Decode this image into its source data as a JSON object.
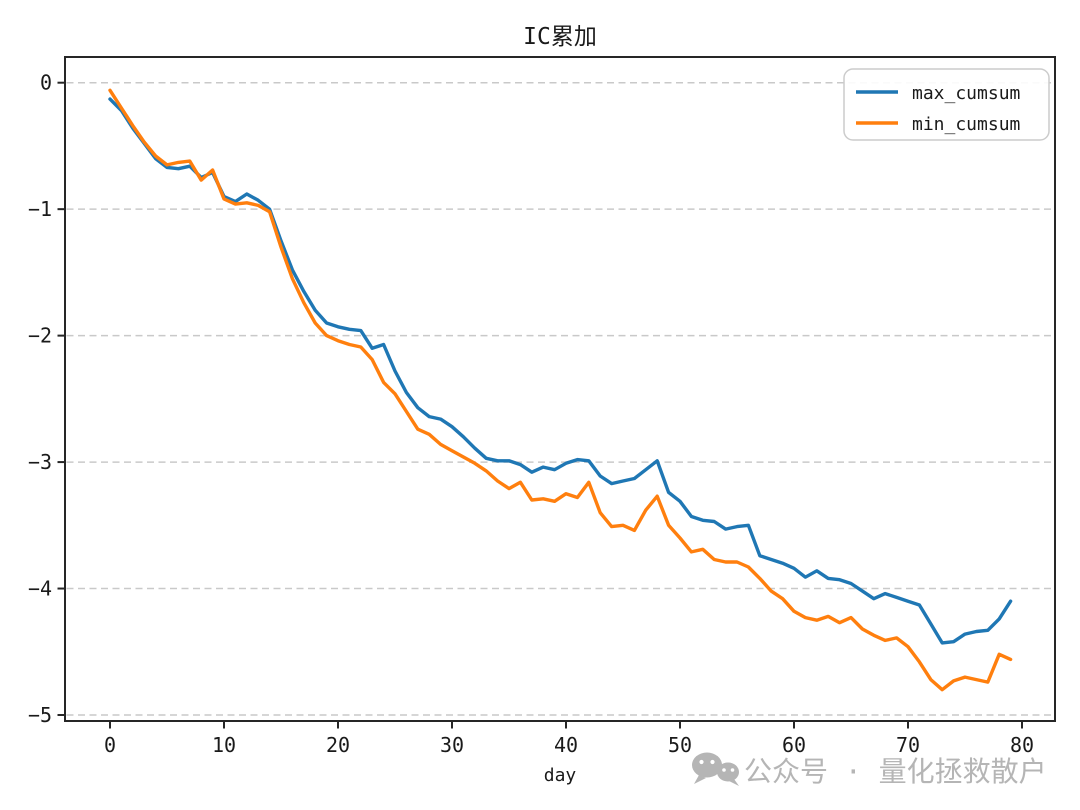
{
  "figure": {
    "title": "IC累加",
    "xlabel": "day",
    "watermark": {
      "text": "公众号 · 量化拯救散户",
      "icon": "wechat-icon",
      "color": "#b5b5b5"
    }
  },
  "legend": {
    "position": "upper right",
    "entries": [
      {
        "label": "max_cumsum",
        "color": "#1f77b4"
      },
      {
        "label": "min_cumsum",
        "color": "#ff7f0e"
      }
    ]
  },
  "chart_data": {
    "type": "line",
    "title": "IC累加",
    "xlabel": "day",
    "ylabel": "",
    "grid": "horizontal-dashed",
    "legend_position": "upper right",
    "xlim": [
      -3.95,
      82.95
    ],
    "ylim": [
      -5.05,
      0.18
    ],
    "x_ticks": [
      0,
      10,
      20,
      30,
      40,
      50,
      60,
      70,
      80
    ],
    "x_tick_labels": [
      "0",
      "10",
      "20",
      "30",
      "40",
      "50",
      "60",
      "70",
      "80"
    ],
    "y_ticks": [
      0,
      -1,
      -2,
      -3,
      -4,
      -5
    ],
    "y_tick_labels": [
      "0",
      "−1",
      "−2",
      "−3",
      "−4",
      "−5"
    ],
    "x": [
      0,
      1,
      2,
      3,
      4,
      5,
      6,
      7,
      8,
      9,
      10,
      11,
      12,
      13,
      14,
      15,
      16,
      17,
      18,
      19,
      20,
      21,
      22,
      23,
      24,
      25,
      26,
      27,
      28,
      29,
      30,
      31,
      32,
      33,
      34,
      35,
      36,
      37,
      38,
      39,
      40,
      41,
      42,
      43,
      44,
      45,
      46,
      47,
      48,
      49,
      50,
      51,
      52,
      53,
      54,
      55,
      56,
      57,
      58,
      59,
      60,
      61,
      62,
      63,
      64,
      65,
      66,
      67,
      68,
      69,
      70,
      71,
      72,
      73,
      74,
      75,
      76,
      77,
      78,
      79
    ],
    "series": [
      {
        "name": "max_cumsum",
        "color": "#1f77b4",
        "values": [
          -0.13,
          -0.22,
          -0.36,
          -0.48,
          -0.6,
          -0.67,
          -0.68,
          -0.66,
          -0.75,
          -0.71,
          -0.9,
          -0.94,
          -0.88,
          -0.93,
          -1.0,
          -1.25,
          -1.48,
          -1.65,
          -1.8,
          -1.9,
          -1.93,
          -1.95,
          -1.96,
          -2.1,
          -2.07,
          -2.28,
          -2.45,
          -2.57,
          -2.64,
          -2.66,
          -2.72,
          -2.8,
          -2.89,
          -2.97,
          -2.99,
          -2.99,
          -3.02,
          -3.08,
          -3.04,
          -3.06,
          -3.01,
          -2.98,
          -2.99,
          -3.11,
          -3.17,
          -3.15,
          -3.13,
          -3.06,
          -2.99,
          -3.24,
          -3.31,
          -3.43,
          -3.46,
          -3.47,
          -3.53,
          -3.51,
          -3.5,
          -3.74,
          -3.77,
          -3.8,
          -3.84,
          -3.91,
          -3.86,
          -3.92,
          -3.93,
          -3.96,
          -4.02,
          -4.08,
          -4.04,
          -4.07,
          -4.1,
          -4.13,
          -4.28,
          -4.43,
          -4.42,
          -4.36,
          -4.34,
          -4.33,
          -4.24,
          -4.1
        ]
      },
      {
        "name": "min_cumsum",
        "color": "#ff7f0e",
        "values": [
          -0.06,
          -0.2,
          -0.34,
          -0.47,
          -0.58,
          -0.65,
          -0.63,
          -0.62,
          -0.77,
          -0.69,
          -0.92,
          -0.96,
          -0.95,
          -0.97,
          -1.02,
          -1.3,
          -1.55,
          -1.74,
          -1.9,
          -2.0,
          -2.04,
          -2.07,
          -2.09,
          -2.19,
          -2.37,
          -2.46,
          -2.6,
          -2.74,
          -2.78,
          -2.86,
          -2.91,
          -2.96,
          -3.01,
          -3.07,
          -3.15,
          -3.21,
          -3.16,
          -3.3,
          -3.29,
          -3.31,
          -3.25,
          -3.28,
          -3.16,
          -3.4,
          -3.51,
          -3.5,
          -3.54,
          -3.38,
          -3.27,
          -3.5,
          -3.6,
          -3.71,
          -3.69,
          -3.77,
          -3.79,
          -3.79,
          -3.83,
          -3.92,
          -4.02,
          -4.08,
          -4.18,
          -4.23,
          -4.25,
          -4.22,
          -4.27,
          -4.23,
          -4.32,
          -4.37,
          -4.41,
          -4.39,
          -4.46,
          -4.58,
          -4.72,
          -4.8,
          -4.73,
          -4.7,
          -4.72,
          -4.74,
          -4.52,
          -4.56
        ]
      }
    ]
  }
}
